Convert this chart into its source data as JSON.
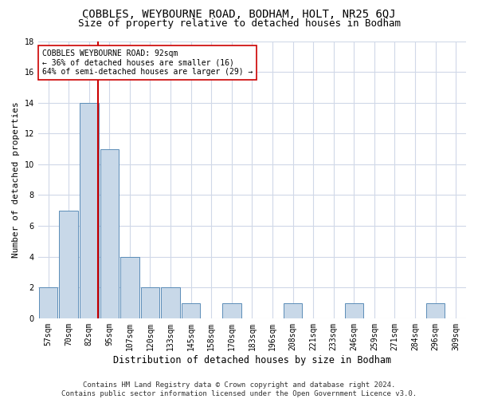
{
  "title": "COBBLES, WEYBOURNE ROAD, BODHAM, HOLT, NR25 6QJ",
  "subtitle": "Size of property relative to detached houses in Bodham",
  "xlabel": "Distribution of detached houses by size in Bodham",
  "ylabel": "Number of detached properties",
  "bins": [
    "57sqm",
    "70sqm",
    "82sqm",
    "95sqm",
    "107sqm",
    "120sqm",
    "133sqm",
    "145sqm",
    "158sqm",
    "170sqm",
    "183sqm",
    "196sqm",
    "208sqm",
    "221sqm",
    "233sqm",
    "246sqm",
    "259sqm",
    "271sqm",
    "284sqm",
    "296sqm",
    "309sqm"
  ],
  "counts": [
    2,
    7,
    14,
    11,
    4,
    2,
    2,
    1,
    0,
    1,
    0,
    0,
    1,
    0,
    0,
    1,
    0,
    0,
    0,
    1,
    0
  ],
  "bar_color": "#c8d8e8",
  "bar_edge_color": "#5b8db8",
  "vline_color": "#cc0000",
  "vline_pos": 2.45,
  "annotation_text": "COBBLES WEYBOURNE ROAD: 92sqm\n← 36% of detached houses are smaller (16)\n64% of semi-detached houses are larger (29) →",
  "annotation_box_color": "#ffffff",
  "annotation_box_edge": "#cc0000",
  "ylim": [
    0,
    18
  ],
  "yticks": [
    0,
    2,
    4,
    6,
    8,
    10,
    12,
    14,
    16,
    18
  ],
  "footer": "Contains HM Land Registry data © Crown copyright and database right 2024.\nContains public sector information licensed under the Open Government Licence v3.0.",
  "bg_color": "#ffffff",
  "grid_color": "#d0d8e8",
  "title_fontsize": 10,
  "subtitle_fontsize": 9,
  "ylabel_fontsize": 8,
  "xlabel_fontsize": 8.5,
  "tick_fontsize": 7,
  "annotation_fontsize": 7,
  "footer_fontsize": 6.5
}
